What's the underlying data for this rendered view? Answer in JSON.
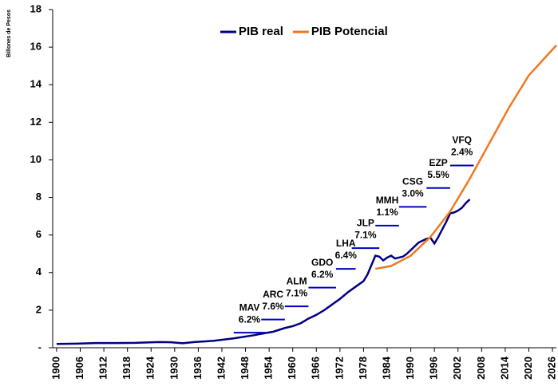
{
  "chart_data": {
    "type": "line",
    "y_label": "Billones de Pesos",
    "xlim": [
      1899,
      2027
    ],
    "xticks": [
      1900,
      1906,
      1912,
      1918,
      1924,
      1930,
      1936,
      1942,
      1948,
      1954,
      1960,
      1966,
      1972,
      1978,
      1984,
      1990,
      1996,
      2002,
      2008,
      2014,
      2020,
      2026
    ],
    "ylim": [
      0,
      18
    ],
    "yticks": [
      {
        "value": 0,
        "label": "-"
      },
      2,
      4,
      6,
      8,
      10,
      12,
      14,
      16,
      18
    ],
    "legend": "top",
    "series": [
      {
        "name": "PIB real",
        "color": "#000080",
        "x": [
          1900,
          1905,
          1910,
          1915,
          1920,
          1926,
          1929,
          1932,
          1935,
          1940,
          1945,
          1950,
          1953,
          1955,
          1958,
          1960,
          1962,
          1964,
          1966,
          1968,
          1970,
          1972,
          1974,
          1976,
          1978,
          1979,
          1980,
          1981,
          1982,
          1983,
          1984,
          1985,
          1986,
          1987,
          1988,
          1989,
          1990,
          1991,
          1992,
          1993,
          1994,
          1995,
          1996,
          1997,
          1998,
          1999,
          2000,
          2001,
          2002,
          2003,
          2004,
          2005
        ],
        "values": [
          0.2,
          0.22,
          0.25,
          0.25,
          0.26,
          0.3,
          0.29,
          0.24,
          0.3,
          0.37,
          0.5,
          0.66,
          0.78,
          0.85,
          1.05,
          1.15,
          1.3,
          1.55,
          1.75,
          2.0,
          2.3,
          2.6,
          2.95,
          3.25,
          3.55,
          3.9,
          4.4,
          4.9,
          4.85,
          4.65,
          4.8,
          4.9,
          4.75,
          4.8,
          4.85,
          5.0,
          5.2,
          5.4,
          5.6,
          5.7,
          5.8,
          5.85,
          5.55,
          5.9,
          6.3,
          6.7,
          7.15,
          7.2,
          7.3,
          7.45,
          7.7,
          7.9
        ]
      },
      {
        "name": "PIB Potencial",
        "color": "#f07820",
        "x": [
          1981,
          1985,
          1990,
          1995,
          2000,
          2005,
          2010,
          2015,
          2020,
          2027
        ],
        "values": [
          4.2,
          4.35,
          4.9,
          5.9,
          7.25,
          9.0,
          10.9,
          12.8,
          14.5,
          16.1
        ]
      }
    ],
    "annotations": [
      {
        "name": "MAV",
        "rate": "6.2%",
        "start": 1945,
        "end": 1953,
        "level": 0.8
      },
      {
        "name": "ARC",
        "rate": "7.6%",
        "start": 1952,
        "end": 1958,
        "level": 1.5
      },
      {
        "name": "ALM",
        "rate": "7.1%",
        "start": 1958,
        "end": 1964,
        "level": 2.2
      },
      {
        "name": "GDO",
        "rate": "6.2%",
        "start": 1964,
        "end": 1971,
        "level": 3.2
      },
      {
        "name": "LHA",
        "rate": "6.4%",
        "start": 1971,
        "end": 1976,
        "level": 4.2
      },
      {
        "name": "JLP",
        "rate": "7.1%",
        "start": 1975,
        "end": 1982,
        "level": 5.3
      },
      {
        "name": "MMH",
        "rate": "1.1%",
        "start": 1981,
        "end": 1987,
        "level": 6.5
      },
      {
        "name": "CSG",
        "rate": "3.0%",
        "start": 1987,
        "end": 1994,
        "level": 7.5
      },
      {
        "name": "EZP",
        "rate": "5.5%",
        "start": 1994,
        "end": 2000,
        "level": 8.5
      },
      {
        "name": "VFQ",
        "rate": "2.4%",
        "start": 2000,
        "end": 2006,
        "level": 9.7
      }
    ]
  }
}
